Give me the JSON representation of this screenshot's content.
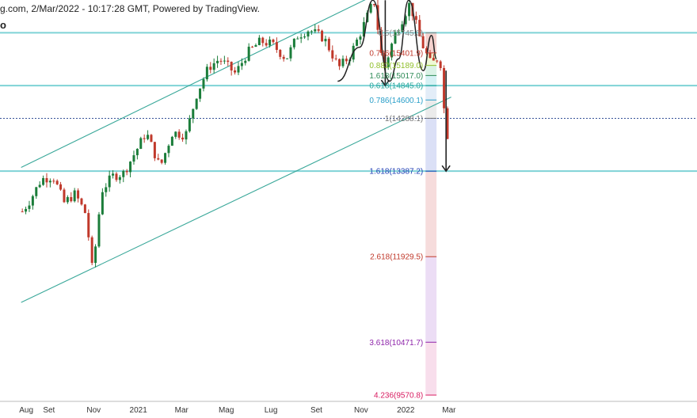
{
  "header": {
    "title": "g.com, 2/Mar/2022 - 10:17:28 GMT, Powered by TradingView.",
    "subtitle": "o"
  },
  "colors": {
    "candle_up": "#1b7d3a",
    "candle_down": "#c0392b",
    "horizontal_level": "#7fd3d6",
    "channel": "#3aa89a",
    "current_price": "#1a3a8a",
    "annotation": "#222222"
  },
  "chart_data": {
    "type": "candlestick",
    "title": "",
    "xlabel": "",
    "ylabel": "",
    "x_ticks": [
      "Aug",
      "Set",
      "Nov",
      "2021",
      "Mar",
      "Mag",
      "Lug",
      "Set",
      "Nov",
      "2022",
      "Mar"
    ],
    "ylim": [
      9450,
      16250
    ],
    "horizontal_levels": [
      15745,
      14845,
      13387.2
    ],
    "current_price": 14288,
    "price_path": [
      [
        "2020-07-25",
        12700
      ],
      [
        "2020-08-05",
        12900
      ],
      [
        "2020-08-20",
        13250
      ],
      [
        "2020-09-05",
        13300
      ],
      [
        "2020-09-20",
        12850
      ],
      [
        "2020-10-05",
        13000
      ],
      [
        "2020-10-20",
        12650
      ],
      [
        "2020-10-29",
        11650
      ],
      [
        "2020-11-10",
        13050
      ],
      [
        "2020-11-25",
        13300
      ],
      [
        "2020-12-10",
        13350
      ],
      [
        "2020-12-28",
        13750
      ],
      [
        "2021-01-10",
        14050
      ],
      [
        "2021-01-29",
        13450
      ],
      [
        "2021-02-15",
        14050
      ],
      [
        "2021-03-05",
        14000
      ],
      [
        "2021-03-20",
        14700
      ],
      [
        "2021-04-05",
        15150
      ],
      [
        "2021-04-20",
        15300
      ],
      [
        "2021-05-12",
        15050
      ],
      [
        "2021-05-28",
        15400
      ],
      [
        "2021-06-15",
        15600
      ],
      [
        "2021-07-01",
        15550
      ],
      [
        "2021-07-20",
        15300
      ],
      [
        "2021-08-05",
        15700
      ],
      [
        "2021-08-20",
        15800
      ],
      [
        "2021-09-10",
        15650
      ],
      [
        "2021-09-30",
        15150
      ],
      [
        "2021-10-15",
        15350
      ],
      [
        "2021-10-28",
        15700
      ],
      [
        "2021-11-17",
        16300
      ],
      [
        "2021-11-30",
        15100
      ],
      [
        "2021-12-15",
        15700
      ],
      [
        "2022-01-05",
        16250
      ],
      [
        "2022-01-20",
        15600
      ],
      [
        "2022-02-03",
        15200
      ],
      [
        "2022-02-15",
        15350
      ],
      [
        "2022-02-24",
        13900
      ],
      [
        "2022-03-01",
        14300
      ]
    ],
    "channel_lines": [
      {
        "name": "upper",
        "points": [
          [
            "2020-07-25",
            13450
          ],
          [
            "2022-02-20",
            16950
          ]
        ]
      },
      {
        "name": "lower",
        "points": [
          [
            "2020-07-25",
            11150
          ],
          [
            "2022-03-04",
            14650
          ]
        ]
      }
    ],
    "drawings": {
      "arrow_short": {
        "x": "2021-12-04",
        "y_from": 16300,
        "y_to": 14845
      },
      "arrow_long": {
        "x": "2022-02-25",
        "y_from": 15100,
        "y_to": 13387.2
      },
      "swing_curve": [
        [
          "2021-09-30",
          14920
        ],
        [
          "2021-10-30",
          15500
        ],
        [
          "2021-11-17",
          16300
        ],
        [
          "2021-12-10",
          14920
        ],
        [
          "2021-12-22",
          15300
        ],
        [
          "2022-01-05",
          16300
        ],
        [
          "2022-01-25",
          15100
        ],
        [
          "2022-02-05",
          15700
        ],
        [
          "2022-02-12",
          15300
        ]
      ]
    },
    "fibonacci": {
      "x_start": "2022-01-28",
      "x_end": "2022-02-12",
      "levels": [
        {
          "ratio": "0.5",
          "price": 15745,
          "label": "0.5(15745.3)",
          "color": "#888888"
        },
        {
          "ratio": "0.786",
          "price": 15401.9,
          "label": "0.786(15401.9)",
          "color": "#c0392b"
        },
        {
          "ratio": "0.882",
          "price": 15189.0,
          "label": "0.882(15189.0)",
          "color": "#8fbf2a"
        },
        {
          "ratio": "1.618",
          "price": 15017.0,
          "label": "1.618(15017.0)",
          "color": "#2e8b57"
        },
        {
          "ratio": "0.618",
          "price": 14845.0,
          "label": "0.618(14845.0)",
          "color": "#26a69a"
        },
        {
          "ratio": "0.786",
          "price": 14600.1,
          "label": "0.786(14600.1)",
          "color": "#2a9fc9"
        },
        {
          "ratio": "1",
          "price": 14288.1,
          "label": "1(14288.1)",
          "color": "#777777"
        },
        {
          "ratio": "1.618",
          "price": 13387.2,
          "label": "1.618(13387.2)",
          "color": "#1e3fb5"
        },
        {
          "ratio": "2.618",
          "price": 11929.5,
          "label": "2.618(11929.5)",
          "color": "#c0392b"
        },
        {
          "ratio": "3.618",
          "price": 10471.7,
          "label": "3.618(10471.7)",
          "color": "#8e24aa"
        },
        {
          "ratio": "4.236",
          "price": 9570.8,
          "label": "4.236(9570.8)",
          "color": "#d81b60"
        }
      ],
      "band_colors": [
        "#f2c2bc",
        "#e8f5c8",
        "#cdeedd",
        "#c7ecf0",
        "#d9e7f5",
        "#e4e4e4",
        "#cfd6f3",
        "#f3d0d0",
        "#e6d2f2",
        "#f6d3e6"
      ]
    }
  }
}
